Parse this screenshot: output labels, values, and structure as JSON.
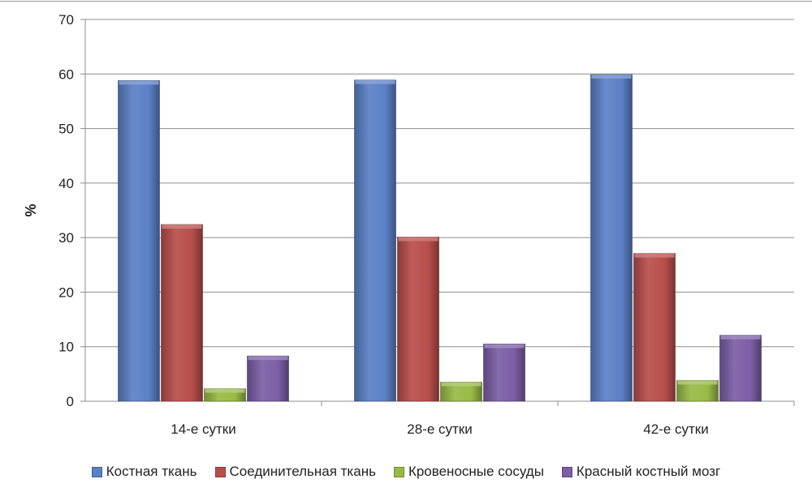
{
  "chart_data": {
    "type": "bar",
    "title": "",
    "xlabel": "",
    "ylabel": "%",
    "ylim": [
      0,
      70
    ],
    "yticks": [
      0,
      10,
      20,
      30,
      40,
      50,
      60,
      70
    ],
    "grid": true,
    "legend_position": "bottom",
    "categories": [
      "14-е сутки",
      "28-е сутки",
      "42-е сутки"
    ],
    "series": [
      {
        "name": "Костная ткань",
        "color": "#5B80C6",
        "values": [
          58.8,
          58.9,
          59.9
        ]
      },
      {
        "name": "Соединительная ткань",
        "color": "#B84E4B",
        "values": [
          32.4,
          30.1,
          27.1
        ]
      },
      {
        "name": "Кровеносные сосуды",
        "color": "#98BA45",
        "values": [
          2.3,
          3.5,
          3.8
        ]
      },
      {
        "name": "Красный костный мозг",
        "color": "#7C5EA6",
        "values": [
          8.3,
          10.5,
          12.1
        ]
      }
    ]
  }
}
